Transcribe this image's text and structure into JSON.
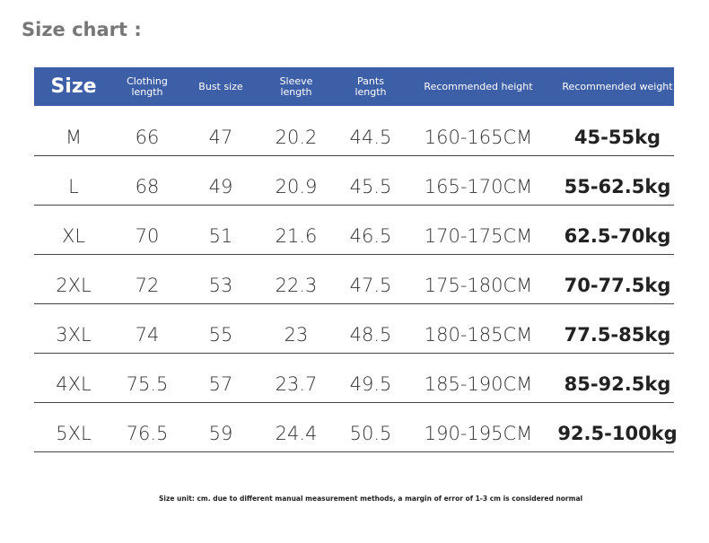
{
  "title": "Size chart :",
  "table": {
    "header": [
      "Size",
      "Clothing length",
      "Bust size",
      "Sleeve length",
      "Pants length",
      "Recommended height",
      "Recommended weight"
    ],
    "rows": [
      [
        "M",
        "66",
        "47",
        "20.2",
        "44.5",
        "160-165CM",
        "45-55kg"
      ],
      [
        "L",
        "68",
        "49",
        "20.9",
        "45.5",
        "165-170CM",
        "55-62.5kg"
      ],
      [
        "XL",
        "70",
        "51",
        "21.6",
        "46.5",
        "170-175CM",
        "62.5-70kg"
      ],
      [
        "2XL",
        "72",
        "53",
        "22.3",
        "47.5",
        "175-180CM",
        "70-77.5kg"
      ],
      [
        "3XL",
        "74",
        "55",
        "23",
        "48.5",
        "180-185CM",
        "77.5-85kg"
      ],
      [
        "4XL",
        "75.5",
        "57",
        "23.7",
        "49.5",
        "185-190CM",
        "85-92.5kg"
      ],
      [
        "5XL",
        "76.5",
        "59",
        "24.4",
        "50.5",
        "190-195CM",
        "92.5-100kg"
      ]
    ]
  },
  "footnote": "Size unit: cm. due to different manual measurement methods, a margin of error of 1-3 cm is considered normal"
}
